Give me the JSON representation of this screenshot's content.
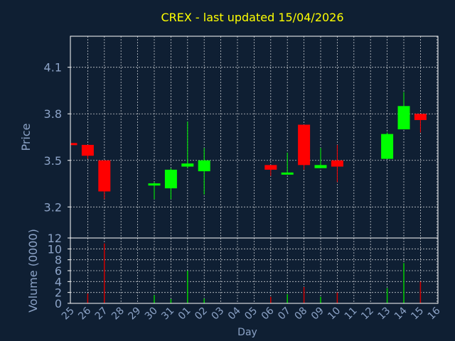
{
  "chart_data": {
    "type": "candlestick",
    "title": "CREX - last updated 15/04/2026",
    "xlabel": "Day",
    "colors": {
      "background": "#0f1f33",
      "title": "#ffff00",
      "axis_text": "#8ca3c7",
      "grid": "#ffffff",
      "frame": "#ffffff",
      "up": "#00ff00",
      "down": "#ff0000",
      "vol_up": "#00cc00",
      "vol_down": "#cc0000"
    },
    "days": [
      "25",
      "26",
      "27",
      "28",
      "29",
      "30",
      "31",
      "01",
      "02",
      "03",
      "04",
      "05",
      "06",
      "07",
      "08",
      "09",
      "10",
      "11",
      "12",
      "13",
      "14",
      "15",
      "16"
    ],
    "price_panel": {
      "ylabel": "Price",
      "ylim": [
        3.0,
        4.3
      ],
      "ticks": [
        3.2,
        3.5,
        3.8,
        4.1
      ],
      "tick_labels": [
        "3.2",
        "3.5",
        "3.8",
        "4.1"
      ]
    },
    "volume_panel": {
      "ylabel": "Volume (0000)",
      "ylim": [
        0,
        12
      ],
      "ticks": [
        0,
        2,
        4,
        6,
        8,
        10,
        12
      ],
      "tick_labels": [
        "0",
        "2",
        "4",
        "6",
        "8",
        "10",
        "12"
      ]
    },
    "candles": [
      {
        "day": "25",
        "open": 3.61,
        "high": 3.61,
        "low": 3.6,
        "close": 3.6
      },
      {
        "day": "26",
        "open": 3.6,
        "high": 3.6,
        "low": 3.51,
        "close": 3.53
      },
      {
        "day": "27",
        "open": 3.5,
        "high": 3.5,
        "low": 3.25,
        "close": 3.3
      },
      {
        "day": "30",
        "open": 3.34,
        "high": 3.36,
        "low": 3.25,
        "close": 3.35
      },
      {
        "day": "31",
        "open": 3.32,
        "high": 3.45,
        "low": 3.25,
        "close": 3.44
      },
      {
        "day": "01",
        "open": 3.46,
        "high": 3.75,
        "low": 3.45,
        "close": 3.48
      },
      {
        "day": "02",
        "open": 3.43,
        "high": 3.58,
        "low": 3.28,
        "close": 3.5
      },
      {
        "day": "06",
        "open": 3.47,
        "high": 3.47,
        "low": 3.4,
        "close": 3.44
      },
      {
        "day": "07",
        "open": 3.41,
        "high": 3.55,
        "low": 3.41,
        "close": 3.42
      },
      {
        "day": "08",
        "open": 3.73,
        "high": 3.73,
        "low": 3.44,
        "close": 3.47
      },
      {
        "day": "09",
        "open": 3.45,
        "high": 3.58,
        "low": 3.45,
        "close": 3.47
      },
      {
        "day": "10",
        "open": 3.5,
        "high": 3.6,
        "low": 3.36,
        "close": 3.46
      },
      {
        "day": "13",
        "open": 3.51,
        "high": 3.68,
        "low": 3.51,
        "close": 3.67
      },
      {
        "day": "14",
        "open": 3.7,
        "high": 3.94,
        "low": 3.7,
        "close": 3.85
      },
      {
        "day": "15",
        "open": 3.8,
        "high": 3.8,
        "low": 3.68,
        "close": 3.76
      }
    ],
    "volume": [
      {
        "day": "26",
        "value": 1.8,
        "direction": "down"
      },
      {
        "day": "27",
        "value": 11.0,
        "direction": "down"
      },
      {
        "day": "30",
        "value": 1.5,
        "direction": "up"
      },
      {
        "day": "31",
        "value": 0.8,
        "direction": "up"
      },
      {
        "day": "01",
        "value": 6.0,
        "direction": "up"
      },
      {
        "day": "02",
        "value": 0.9,
        "direction": "up"
      },
      {
        "day": "06",
        "value": 1.2,
        "direction": "down"
      },
      {
        "day": "07",
        "value": 1.7,
        "direction": "up"
      },
      {
        "day": "08",
        "value": 3.0,
        "direction": "down"
      },
      {
        "day": "09",
        "value": 1.2,
        "direction": "up"
      },
      {
        "day": "10",
        "value": 2.0,
        "direction": "down"
      },
      {
        "day": "13",
        "value": 2.8,
        "direction": "up"
      },
      {
        "day": "14",
        "value": 7.4,
        "direction": "up"
      },
      {
        "day": "15",
        "value": 4.0,
        "direction": "down"
      }
    ]
  }
}
